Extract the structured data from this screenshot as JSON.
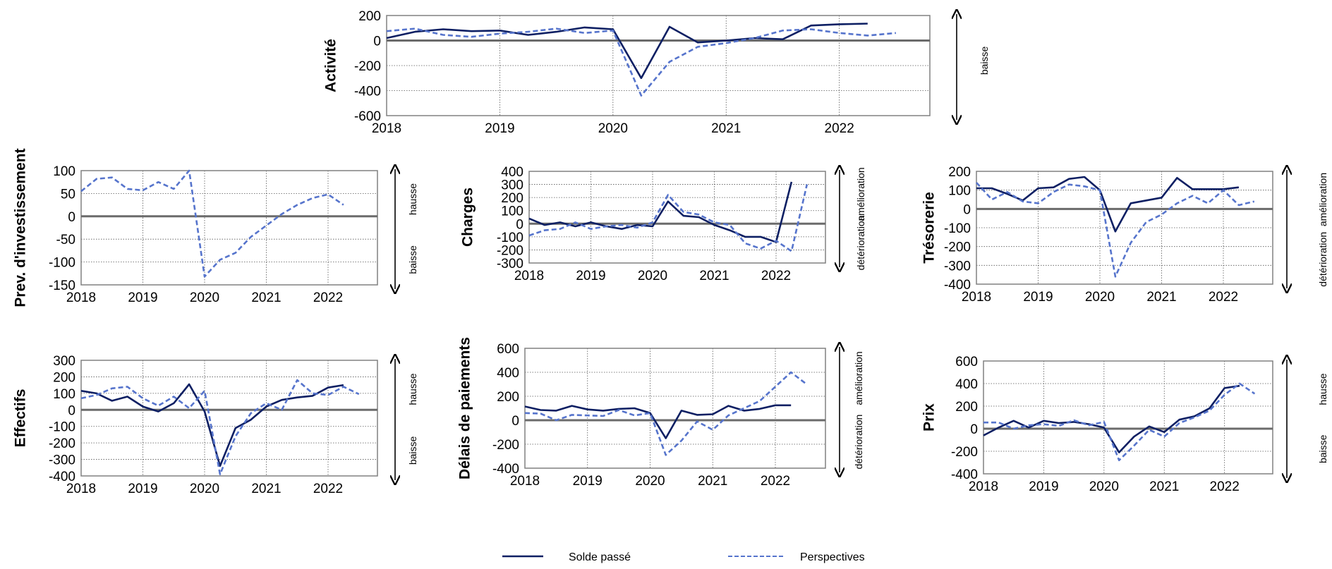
{
  "colors": {
    "solde": "#0d1f63",
    "perspectives": "#5674cc",
    "zero": "#6b6b6b",
    "frame": "#808080",
    "grid": "#555555",
    "arrow": "#000000"
  },
  "legend": {
    "solde": "Solde passé",
    "perspectives": "Perspectives"
  },
  "chart_data": [
    {
      "id": "activite",
      "type": "line",
      "ylabel": "Activité",
      "ylim": [
        -600,
        200
      ],
      "yticks": [
        200,
        0,
        -200,
        -400,
        -600
      ],
      "xlim": [
        2018,
        2022.8
      ],
      "xticks": [
        2018,
        2019,
        2020,
        2021,
        2022
      ],
      "grid": true,
      "side_labels": {
        "top": "",
        "bottom": "baisse"
      },
      "series": [
        {
          "key": "solde",
          "x": [
            2018,
            2018.25,
            2018.5,
            2018.75,
            2019,
            2019.25,
            2019.5,
            2019.75,
            2020,
            2020.25,
            2020.5,
            2020.75,
            2021,
            2021.25,
            2021.5,
            2021.75,
            2022,
            2022.25
          ],
          "y": [
            20,
            70,
            90,
            75,
            80,
            45,
            70,
            105,
            90,
            -300,
            110,
            -15,
            0,
            20,
            10,
            120,
            130,
            135
          ]
        },
        {
          "key": "perspectives",
          "x": [
            2018,
            2018.25,
            2018.5,
            2018.75,
            2019,
            2019.25,
            2019.5,
            2019.75,
            2020,
            2020.25,
            2020.5,
            2020.75,
            2021,
            2021.25,
            2021.5,
            2021.75,
            2022,
            2022.25,
            2022.5
          ],
          "y": [
            75,
            95,
            45,
            30,
            55,
            70,
            95,
            60,
            80,
            -440,
            -170,
            -50,
            -20,
            20,
            80,
            90,
            60,
            40,
            60
          ]
        }
      ]
    },
    {
      "id": "investissement",
      "type": "line",
      "ylabel": "Prev. d'investissement",
      "ylim": [
        -150,
        100
      ],
      "yticks": [
        100,
        50,
        0,
        -50,
        -100,
        -150
      ],
      "xlim": [
        2018,
        2022.8
      ],
      "xticks": [
        2018,
        2019,
        2020,
        2021,
        2022
      ],
      "grid": true,
      "side_labels": {
        "top": "hausse",
        "bottom": "baisse"
      },
      "series": [
        {
          "key": "perspectives",
          "x": [
            2018,
            2018.25,
            2018.5,
            2018.75,
            2019,
            2019.25,
            2019.5,
            2019.75,
            2020,
            2020.25,
            2020.5,
            2020.75,
            2021,
            2021.25,
            2021.5,
            2021.75,
            2022,
            2022.25
          ],
          "y": [
            55,
            82,
            85,
            60,
            57,
            75,
            60,
            100,
            -132,
            -95,
            -80,
            -45,
            -20,
            5,
            25,
            40,
            48,
            25
          ]
        }
      ]
    },
    {
      "id": "charges",
      "type": "line",
      "ylabel": "Charges",
      "ylim": [
        -300,
        400
      ],
      "yticks": [
        400,
        300,
        200,
        100,
        0,
        -100,
        -200,
        -300
      ],
      "xlim": [
        2018,
        2022.8
      ],
      "xticks": [
        2018,
        2019,
        2020,
        2021,
        2022
      ],
      "grid": true,
      "side_labels": {
        "top": "amélioration",
        "bottom": "détérioration"
      },
      "series": [
        {
          "key": "solde",
          "x": [
            2018,
            2018.25,
            2018.5,
            2018.75,
            2019,
            2019.25,
            2019.5,
            2019.75,
            2020,
            2020.25,
            2020.5,
            2020.75,
            2021,
            2021.25,
            2021.5,
            2021.75,
            2022,
            2022.25
          ],
          "y": [
            40,
            -10,
            10,
            -20,
            10,
            -20,
            -40,
            -10,
            -20,
            170,
            60,
            50,
            -10,
            -50,
            -100,
            -100,
            -140,
            320
          ]
        },
        {
          "key": "perspectives",
          "x": [
            2018,
            2018.25,
            2018.5,
            2018.75,
            2019,
            2019.25,
            2019.5,
            2019.75,
            2020,
            2020.25,
            2020.5,
            2020.75,
            2021,
            2021.25,
            2021.5,
            2021.75,
            2022,
            2022.25,
            2022.5
          ],
          "y": [
            -90,
            -50,
            -40,
            10,
            -40,
            -20,
            -10,
            -30,
            10,
            220,
            90,
            70,
            10,
            -10,
            -150,
            -190,
            -130,
            -210,
            300
          ]
        }
      ]
    },
    {
      "id": "tresorerie",
      "type": "line",
      "ylabel": "Trésorerie",
      "ylim": [
        -400,
        200
      ],
      "yticks": [
        200,
        100,
        0,
        -100,
        -200,
        -300,
        -400
      ],
      "xlim": [
        2018,
        2022.8
      ],
      "xticks": [
        2018,
        2019,
        2020,
        2021,
        2022
      ],
      "grid": true,
      "side_labels": {
        "top": "amélioration",
        "bottom": "détérioration"
      },
      "series": [
        {
          "key": "solde",
          "x": [
            2018,
            2018.25,
            2018.5,
            2018.75,
            2019,
            2019.25,
            2019.5,
            2019.75,
            2020,
            2020.25,
            2020.5,
            2020.75,
            2021,
            2021.25,
            2021.5,
            2021.75,
            2022,
            2022.25
          ],
          "y": [
            110,
            110,
            80,
            45,
            110,
            115,
            160,
            170,
            100,
            -120,
            30,
            45,
            60,
            165,
            105,
            105,
            105,
            115
          ]
        },
        {
          "key": "perspectives",
          "x": [
            2018,
            2018.25,
            2018.5,
            2018.75,
            2019,
            2019.25,
            2019.5,
            2019.75,
            2020,
            2020.25,
            2020.5,
            2020.75,
            2021,
            2021.25,
            2021.5,
            2021.75,
            2022,
            2022.25,
            2022.5
          ],
          "y": [
            140,
            50,
            90,
            40,
            30,
            90,
            130,
            120,
            100,
            -360,
            -180,
            -70,
            -30,
            30,
            70,
            30,
            100,
            20,
            40
          ]
        }
      ]
    },
    {
      "id": "effectifs",
      "type": "line",
      "ylabel": "Effectifs",
      "ylim": [
        -400,
        300
      ],
      "yticks": [
        300,
        200,
        100,
        0,
        -100,
        -200,
        -300,
        -400
      ],
      "xlim": [
        2018,
        2022.8
      ],
      "xticks": [
        2018,
        2019,
        2020,
        2021,
        2022
      ],
      "grid": true,
      "side_labels": {
        "top": "hausse",
        "bottom": "baisse"
      },
      "series": [
        {
          "key": "solde",
          "x": [
            2018,
            2018.25,
            2018.5,
            2018.75,
            2019,
            2019.25,
            2019.5,
            2019.75,
            2020,
            2020.25,
            2020.5,
            2020.75,
            2021,
            2021.25,
            2021.5,
            2021.75,
            2022,
            2022.25
          ],
          "y": [
            115,
            100,
            55,
            80,
            20,
            -10,
            40,
            155,
            -10,
            -340,
            -110,
            -60,
            20,
            60,
            75,
            85,
            135,
            150
          ]
        },
        {
          "key": "perspectives",
          "x": [
            2018,
            2018.25,
            2018.5,
            2018.75,
            2019,
            2019.25,
            2019.5,
            2019.75,
            2020,
            2020.25,
            2020.5,
            2020.75,
            2021,
            2021.25,
            2021.5,
            2021.75,
            2022,
            2022.25,
            2022.5
          ],
          "y": [
            70,
            90,
            130,
            140,
            70,
            25,
            80,
            10,
            115,
            -390,
            -160,
            -20,
            40,
            0,
            180,
            100,
            90,
            140,
            95
          ]
        }
      ]
    },
    {
      "id": "delais",
      "type": "line",
      "ylabel": "Délais de paiements",
      "ylim": [
        -400,
        600
      ],
      "yticks": [
        600,
        400,
        200,
        0,
        -200,
        -400
      ],
      "xlim": [
        2018,
        2022.8
      ],
      "xticks": [
        2018,
        2019,
        2020,
        2021,
        2022
      ],
      "grid": true,
      "side_labels": {
        "top": "amélioration",
        "bottom": "détérioration"
      },
      "series": [
        {
          "key": "solde",
          "x": [
            2018,
            2018.25,
            2018.5,
            2018.75,
            2019,
            2019.25,
            2019.5,
            2019.75,
            2020,
            2020.25,
            2020.5,
            2020.75,
            2021,
            2021.25,
            2021.5,
            2021.75,
            2022,
            2022.25
          ],
          "y": [
            115,
            85,
            80,
            120,
            90,
            80,
            95,
            100,
            60,
            -150,
            80,
            45,
            50,
            120,
            80,
            95,
            125,
            125
          ]
        },
        {
          "key": "perspectives",
          "x": [
            2018,
            2018.25,
            2018.5,
            2018.75,
            2019,
            2019.25,
            2019.5,
            2019.75,
            2020,
            2020.25,
            2020.5,
            2020.75,
            2021,
            2021.25,
            2021.5,
            2021.75,
            2022,
            2022.25,
            2022.5
          ],
          "y": [
            60,
            55,
            0,
            45,
            40,
            35,
            85,
            40,
            60,
            -290,
            -170,
            -10,
            -80,
            40,
            100,
            160,
            280,
            400,
            300
          ]
        }
      ]
    },
    {
      "id": "prix",
      "type": "line",
      "ylabel": "Prix",
      "ylim": [
        -400,
        600
      ],
      "yticks": [
        600,
        400,
        200,
        0,
        -200,
        -400
      ],
      "xlim": [
        2018,
        2022.8
      ],
      "xticks": [
        2018,
        2019,
        2020,
        2021,
        2022
      ],
      "grid": true,
      "side_labels": {
        "top": "hausse",
        "bottom": "baisse"
      },
      "series": [
        {
          "key": "solde",
          "x": [
            2018,
            2018.25,
            2018.5,
            2018.75,
            2019,
            2019.25,
            2019.5,
            2019.75,
            2020,
            2020.25,
            2020.5,
            2020.75,
            2021,
            2021.25,
            2021.5,
            2021.75,
            2022,
            2022.25
          ],
          "y": [
            -60,
            10,
            70,
            10,
            70,
            50,
            60,
            40,
            10,
            -210,
            -70,
            20,
            -30,
            80,
            110,
            180,
            360,
            380
          ]
        },
        {
          "key": "perspectives",
          "x": [
            2018,
            2018.25,
            2018.5,
            2018.75,
            2019,
            2019.25,
            2019.5,
            2019.75,
            2020,
            2020.25,
            2020.5,
            2020.75,
            2021,
            2021.25,
            2021.5,
            2021.75,
            2022,
            2022.25,
            2022.5
          ],
          "y": [
            55,
            55,
            0,
            30,
            40,
            25,
            75,
            30,
            60,
            -280,
            -150,
            -10,
            -70,
            50,
            100,
            160,
            300,
            400,
            310
          ]
        }
      ]
    }
  ]
}
